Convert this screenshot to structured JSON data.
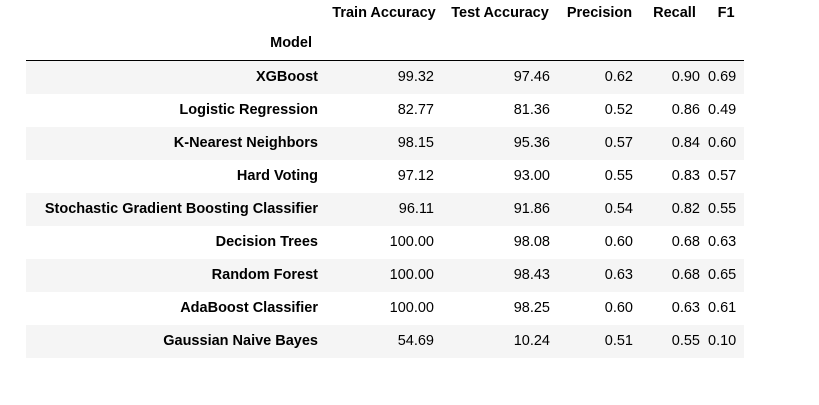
{
  "table": {
    "columns": [
      "Train Accuracy",
      "Test Accuracy",
      "Precision",
      "Recall",
      "F1"
    ],
    "index_name": "Model",
    "rows": [
      {
        "model": "XGBoost",
        "values": [
          "99.32",
          "97.46",
          "0.62",
          "0.90",
          "0.69"
        ]
      },
      {
        "model": "Logistic Regression",
        "values": [
          "82.77",
          "81.36",
          "0.52",
          "0.86",
          "0.49"
        ]
      },
      {
        "model": "K-Nearest Neighbors",
        "values": [
          "98.15",
          "95.36",
          "0.57",
          "0.84",
          "0.60"
        ]
      },
      {
        "model": "Hard Voting",
        "values": [
          "97.12",
          "93.00",
          "0.55",
          "0.83",
          "0.57"
        ]
      },
      {
        "model": "Stochastic Gradient Boosting Classifier",
        "values": [
          "96.11",
          "91.86",
          "0.54",
          "0.82",
          "0.55"
        ]
      },
      {
        "model": "Decision Trees",
        "values": [
          "100.00",
          "98.08",
          "0.60",
          "0.68",
          "0.63"
        ]
      },
      {
        "model": "Random Forest",
        "values": [
          "100.00",
          "98.43",
          "0.63",
          "0.68",
          "0.65"
        ]
      },
      {
        "model": "AdaBoost Classifier",
        "values": [
          "100.00",
          "98.25",
          "0.60",
          "0.63",
          "0.61"
        ]
      },
      {
        "model": "Gaussian Naive Bayes",
        "values": [
          "54.69",
          "10.24",
          "0.51",
          "0.55",
          "0.10"
        ]
      }
    ]
  }
}
